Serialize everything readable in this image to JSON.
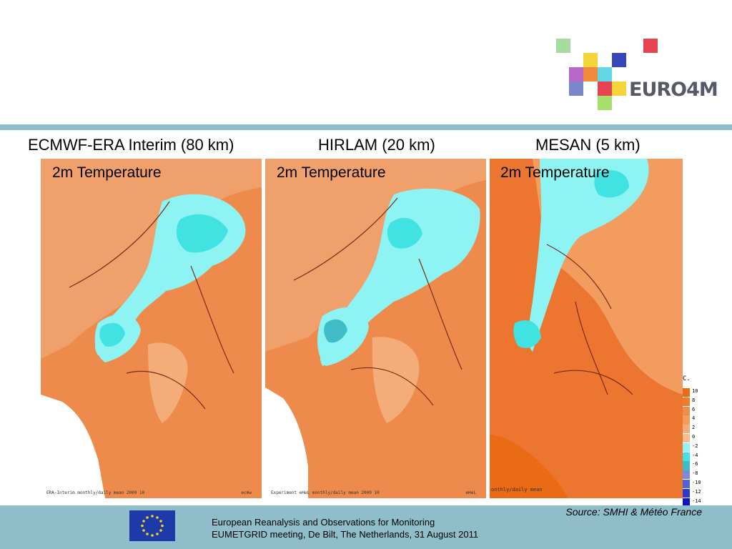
{
  "header": {
    "logo_text": "EURO4M"
  },
  "maps": [
    {
      "title": "ECMWF-ERA Interim (80 km)",
      "label": "2m Temperature",
      "footer": "ERA-Interim  monthly/daily mean   2009 10",
      "corner": "ecmw"
    },
    {
      "title": "HIRLAM (20 km)",
      "label": "2m Temperature",
      "footer": "Experiment eHeL  monthly/daily mean   2009 10",
      "corner": "eHeL"
    },
    {
      "title": "MESAN (5 km)",
      "label": "2m Temperature",
      "footer": "onthly/daily mean",
      "corner": ""
    }
  ],
  "legend": {
    "unit": "C.",
    "items": [
      {
        "label": "10",
        "color": "#ea6a16"
      },
      {
        "label": "8",
        "color": "#ee7c30"
      },
      {
        "label": "6",
        "color": "#f08c47"
      },
      {
        "label": "4",
        "color": "#f29c60"
      },
      {
        "label": "2",
        "color": "#f4ac79"
      },
      {
        "label": "0",
        "color": "#f5bd94"
      },
      {
        "label": "-2",
        "color": "#8df3f3"
      },
      {
        "label": "-4",
        "color": "#41e2e2"
      },
      {
        "label": "-6",
        "color": "#3fbcc6"
      },
      {
        "label": "-8",
        "color": "#7a8bdb"
      },
      {
        "label": "-10",
        "color": "#5561d8"
      },
      {
        "label": "-12",
        "color": "#2f37d6"
      },
      {
        "label": "-14",
        "color": "#0d12cf"
      }
    ]
  },
  "footer": {
    "source": "Source: SMHI & Météo France",
    "line1": "European Reanalysis and Observations for Monitoring",
    "line2": "EUMETGRID meeting, De Bilt, The Netherlands, 31 August 2011"
  }
}
